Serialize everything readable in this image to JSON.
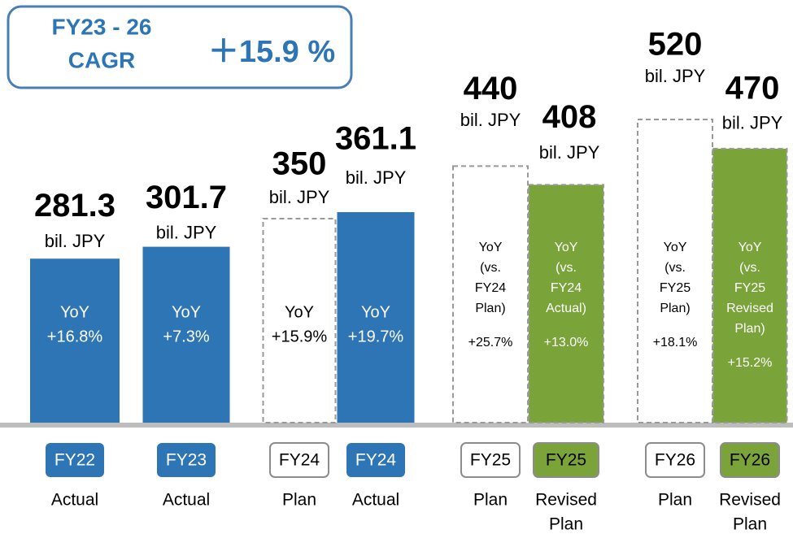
{
  "chart_data": {
    "type": "bar",
    "cagr": {
      "label": [
        "FY23 - 26",
        "CAGR"
      ],
      "value": "＋15.9 %"
    },
    "categories": [
      "FY22",
      "FY23",
      "FY24",
      "FY24",
      "FY25",
      "FY25",
      "FY26",
      "FY26"
    ],
    "sublabels": [
      [
        "Actual"
      ],
      [
        "Actual"
      ],
      [
        "Plan"
      ],
      [
        "Actual"
      ],
      [
        "Plan"
      ],
      [
        "Revised",
        "Plan"
      ],
      [
        "Plan"
      ],
      [
        "Revised",
        "Plan"
      ]
    ],
    "values": [
      281.3,
      301.7,
      350,
      361.1,
      440,
      408,
      520,
      470
    ],
    "unit": "bil. JPY",
    "yoy": [
      [
        "YoY",
        "+16.8%"
      ],
      [
        "YoY",
        "+7.3%"
      ],
      [
        "YoY",
        "+15.9%"
      ],
      [
        "YoY",
        "+19.7%"
      ],
      [
        "YoY",
        "(vs.",
        "FY24",
        "Plan)",
        "+25.7%"
      ],
      [
        "YoY",
        "(vs.",
        "FY24",
        "Actual)",
        "+13.0%"
      ],
      [
        "YoY",
        "(vs.",
        "FY25",
        "Plan)",
        "+18.1%"
      ],
      [
        "YoY",
        "(vs.",
        "FY25",
        "Revised",
        "Plan)",
        "+15.2%"
      ]
    ],
    "kinds": [
      "actual",
      "actual",
      "plan",
      "actual",
      "plan",
      "revised",
      "plan",
      "revised"
    ],
    "colors": {
      "actual": "#2e75b6",
      "plan": "#ffffff",
      "revised": "#7aa43a"
    },
    "ylim": [
      0,
      725
    ]
  }
}
